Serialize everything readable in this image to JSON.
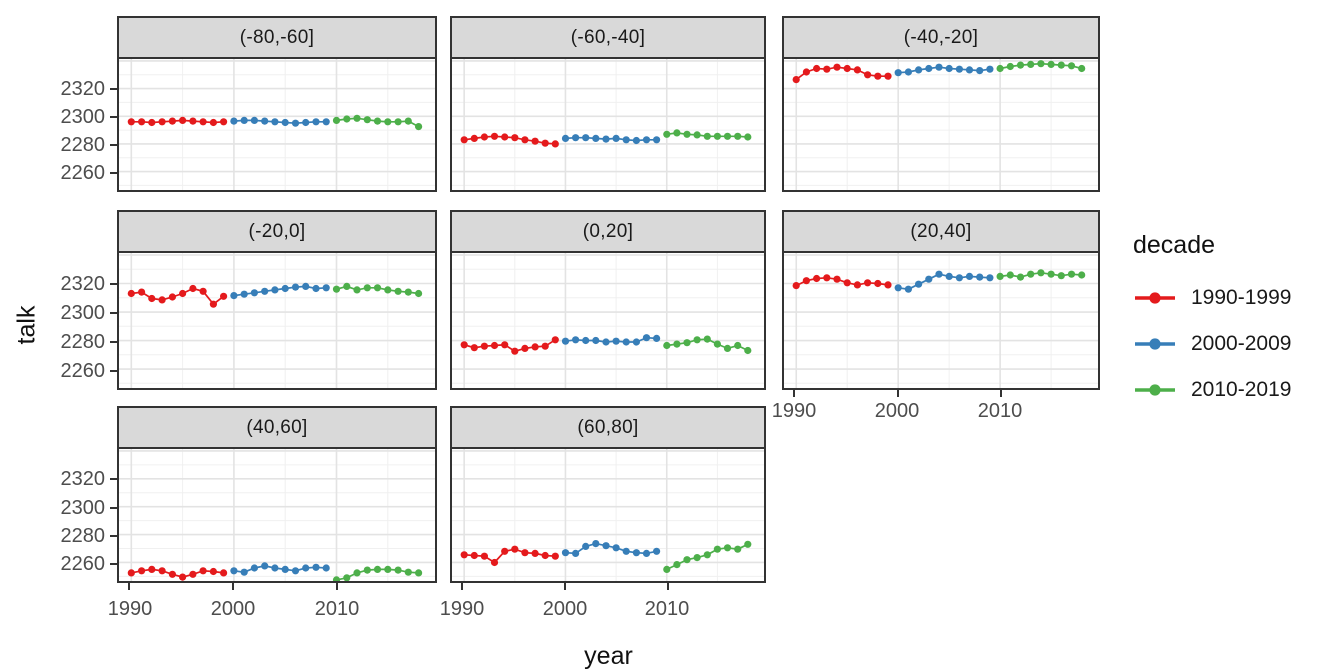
{
  "figure": {
    "xlabel": "year",
    "ylabel": "talk",
    "legend": {
      "title": "decade",
      "entries": [
        {
          "label": "1990-1999",
          "color": "#E41A1C"
        },
        {
          "label": "2000-2009",
          "color": "#377EB8"
        },
        {
          "label": "2010-2019",
          "color": "#4DAF4A"
        }
      ]
    }
  },
  "chart_data": {
    "type": "line",
    "title": "",
    "xlabel": "year",
    "ylabel": "talk",
    "facet_variable": "latitude band",
    "legend_position": "right",
    "grid": true,
    "x_axis": {
      "ticks": [
        1990,
        2000,
        2010
      ],
      "minor": [
        1995,
        2005,
        2015
      ],
      "range": [
        1988.8,
        2019.6
      ]
    },
    "y_axis": {
      "ticks": [
        2320,
        2300,
        2280,
        2260
      ],
      "major": [
        2260,
        2280,
        2300,
        2320,
        2340
      ],
      "minor": [
        2250,
        2270,
        2290,
        2310,
        2330
      ],
      "range": [
        2246.7,
        2341.4
      ]
    },
    "series_colors": {
      "1990-1999": "#E41A1C",
      "2000-2009": "#377EB8",
      "2010-2019": "#4DAF4A"
    },
    "panels": [
      {
        "label": "(-80,-60]",
        "series": [
          {
            "decade": "1990-1999",
            "start_year": 1990,
            "values": [
              2296,
              2296,
              2295.5,
              2296,
              2296.5,
              2297,
              2296.5,
              2296,
              2295.5,
              2296
            ]
          },
          {
            "decade": "2000-2009",
            "start_year": 2000,
            "values": [
              2296.5,
              2297,
              2297,
              2296.5,
              2296,
              2295.5,
              2295,
              2295.5,
              2296,
              2296
            ]
          },
          {
            "decade": "2010-2019",
            "start_year": 2010,
            "values": [
              2297,
              2298,
              2298.5,
              2297.5,
              2296.5,
              2296,
              2296,
              2296.5,
              2292.5
            ]
          }
        ]
      },
      {
        "label": "(-60,-40]",
        "series": [
          {
            "decade": "1990-1999",
            "start_year": 1990,
            "values": [
              2283,
              2284,
              2285,
              2285.5,
              2285,
              2284.5,
              2283,
              2282,
              2280.5,
              2280
            ]
          },
          {
            "decade": "2000-2009",
            "start_year": 2000,
            "values": [
              2284,
              2284.5,
              2284.5,
              2284,
              2283.5,
              2284,
              2283,
              2282.5,
              2283,
              2283
            ]
          },
          {
            "decade": "2010-2019",
            "start_year": 2010,
            "values": [
              2287,
              2288,
              2287,
              2286.5,
              2285.5,
              2285.5,
              2285.5,
              2285.5,
              2285
            ]
          }
        ]
      },
      {
        "label": "(-40,-20]",
        "series": [
          {
            "decade": "1990-1999",
            "start_year": 1990,
            "values": [
              2326.5,
              2332,
              2334.5,
              2334,
              2335.5,
              2334.5,
              2333.5,
              2330,
              2329,
              2329
            ]
          },
          {
            "decade": "2000-2009",
            "start_year": 2000,
            "values": [
              2331.5,
              2332,
              2333.5,
              2334.5,
              2335.5,
              2334.5,
              2334,
              2333.5,
              2333,
              2334
            ]
          },
          {
            "decade": "2010-2019",
            "start_year": 2010,
            "values": [
              2334.5,
              2336,
              2337,
              2337.5,
              2338,
              2337.5,
              2337,
              2336.5,
              2334.5
            ]
          }
        ]
      },
      {
        "label": "(-20,0]",
        "series": [
          {
            "decade": "1990-1999",
            "start_year": 1990,
            "values": [
              2313,
              2314,
              2309.5,
              2308.5,
              2310.5,
              2313,
              2316.5,
              2314.5,
              2305.5,
              2311
            ]
          },
          {
            "decade": "2000-2009",
            "start_year": 2000,
            "values": [
              2311.5,
              2312.5,
              2313.5,
              2314.5,
              2315.5,
              2316.5,
              2317.5,
              2318,
              2316.5,
              2317
            ]
          },
          {
            "decade": "2010-2019",
            "start_year": 2010,
            "values": [
              2316,
              2318,
              2315.5,
              2317,
              2317,
              2315.5,
              2314.5,
              2314,
              2313
            ]
          }
        ]
      },
      {
        "label": "(0,20]",
        "series": [
          {
            "decade": "1990-1999",
            "start_year": 1990,
            "values": [
              2277,
              2275,
              2276,
              2276.5,
              2277,
              2272.5,
              2274.5,
              2275.5,
              2276,
              2280.5
            ]
          },
          {
            "decade": "2000-2009",
            "start_year": 2000,
            "values": [
              2279.5,
              2280.5,
              2280,
              2280,
              2279,
              2279.5,
              2279,
              2279,
              2282,
              2281.5
            ]
          },
          {
            "decade": "2010-2019",
            "start_year": 2010,
            "values": [
              2276.5,
              2277.5,
              2278.5,
              2280.5,
              2281,
              2277.5,
              2274.5,
              2276.5,
              2273
            ]
          }
        ]
      },
      {
        "label": "(20,40]",
        "series": [
          {
            "decade": "1990-1999",
            "start_year": 1990,
            "values": [
              2318.5,
              2322,
              2323.5,
              2324,
              2323,
              2320.5,
              2319,
              2320.5,
              2320,
              2319
            ]
          },
          {
            "decade": "2000-2009",
            "start_year": 2000,
            "values": [
              2317,
              2316,
              2319.5,
              2323,
              2326.5,
              2325,
              2324,
              2325,
              2324.5,
              2324
            ]
          },
          {
            "decade": "2010-2019",
            "start_year": 2010,
            "values": [
              2325,
              2326,
              2324.5,
              2326.5,
              2327.5,
              2326.5,
              2325.5,
              2326.5,
              2326
            ]
          }
        ]
      },
      {
        "label": "(40,60]",
        "series": [
          {
            "decade": "1990-1999",
            "start_year": 1990,
            "values": [
              2252.5,
              2254,
              2255,
              2254,
              2251.5,
              2249.5,
              2251.5,
              2254,
              2253.5,
              2252.5
            ]
          },
          {
            "decade": "2000-2009",
            "start_year": 2000,
            "values": [
              2254,
              2253,
              2256,
              2257.5,
              2256,
              2255,
              2254,
              2256,
              2256.5,
              2256
            ]
          },
          {
            "decade": "2010-2019",
            "start_year": 2010,
            "values": [
              2247.5,
              2249,
              2252.5,
              2254.5,
              2255,
              2255,
              2254.5,
              2253,
              2252.5
            ]
          }
        ]
      },
      {
        "label": "(60,80]",
        "series": [
          {
            "decade": "1990-1999",
            "start_year": 1990,
            "values": [
              2265.5,
              2265,
              2264.5,
              2260,
              2268,
              2269.5,
              2267,
              2266.5,
              2265,
              2264.5
            ]
          },
          {
            "decade": "2000-2009",
            "start_year": 2000,
            "values": [
              2267,
              2266.5,
              2271.5,
              2273.5,
              2272,
              2270.5,
              2268,
              2267,
              2266.5,
              2268
            ]
          },
          {
            "decade": "2010-2019",
            "start_year": 2010,
            "values": [
              2255,
              2258.5,
              2262,
              2263.5,
              2265.5,
              2269.5,
              2270.5,
              2269.5,
              2273
            ]
          }
        ]
      }
    ]
  }
}
